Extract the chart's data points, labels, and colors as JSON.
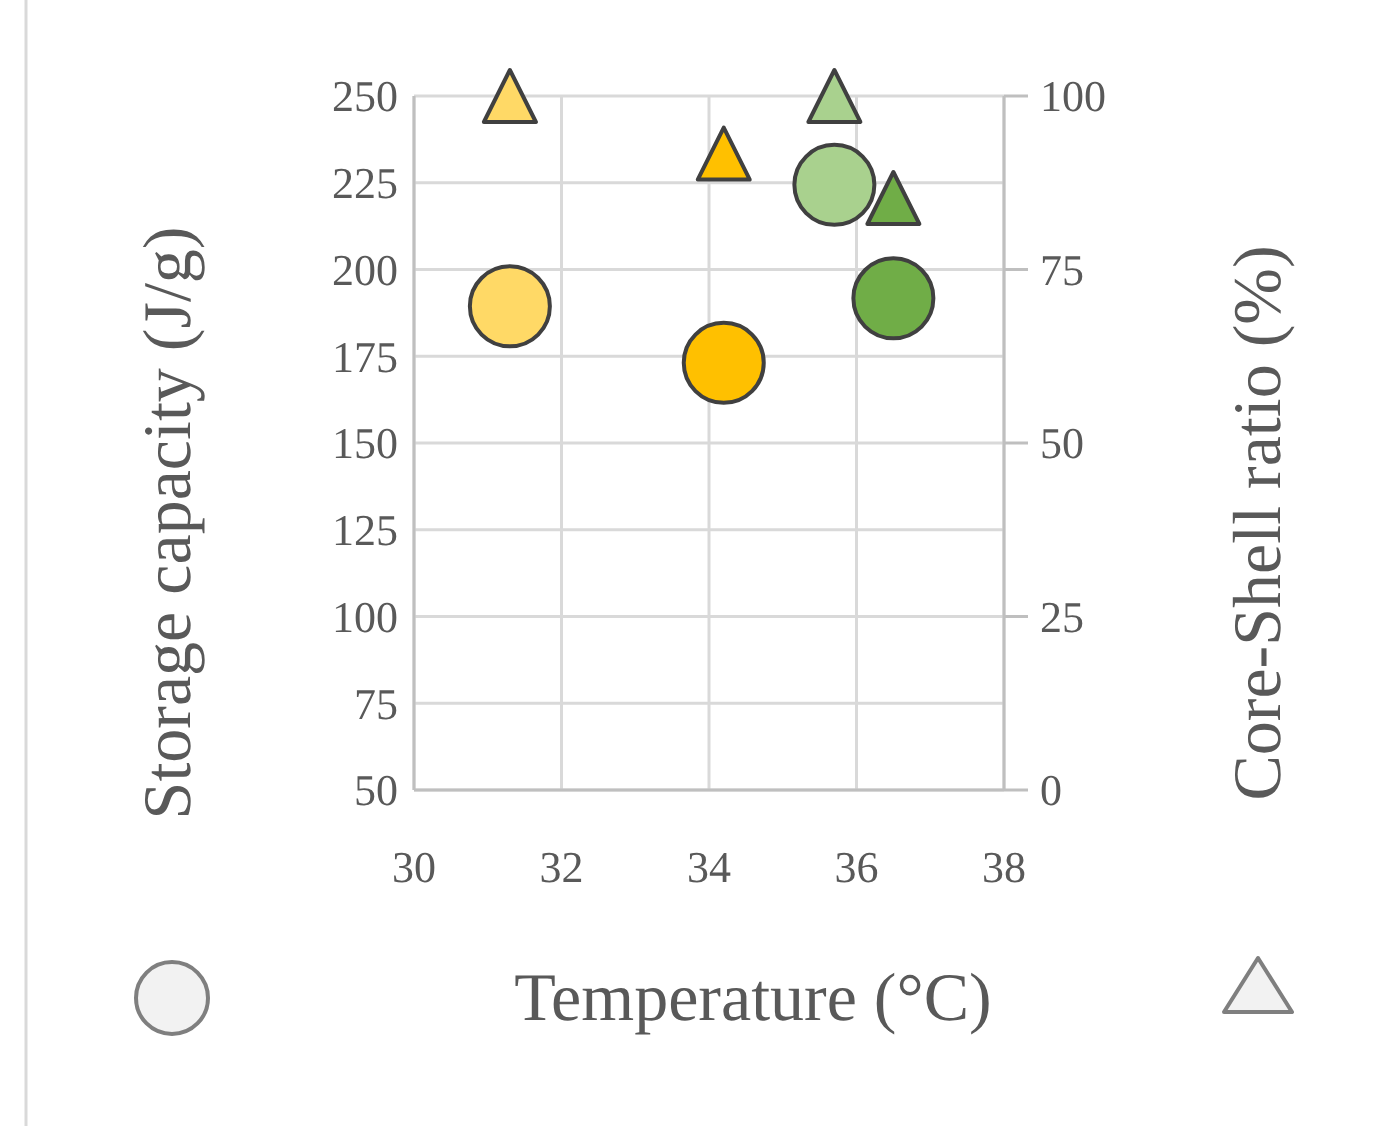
{
  "chart_data": {
    "type": "scatter",
    "xlabel": "Temperature (°C)",
    "ylabel": "Storage capacity (J/g)",
    "y2label": "Core-Shell ratio (%)",
    "x": [
      31.3,
      34.2,
      35.7,
      36.5
    ],
    "series": [
      {
        "marker": "circle",
        "colors": [
          "#ffd966",
          "#ffc000",
          "#a9d18e",
          "#70ad47"
        ],
        "values": [
          189.4,
          173.1,
          224.4,
          191.7
        ]
      },
      {
        "marker": "triangle",
        "axis": "y2",
        "colors": [
          "#ffd966",
          "#ffc000",
          "#a9d18e",
          "#70ad47"
        ],
        "values": [
          100,
          91.7,
          100,
          85.3
        ]
      }
    ],
    "xlim": [
      30,
      38
    ],
    "xticks": [
      30,
      32,
      34,
      36,
      38
    ],
    "ylim": [
      50,
      250
    ],
    "yticks": [
      50,
      75,
      100,
      125,
      150,
      175,
      200,
      225,
      250
    ],
    "y2lim": [
      0,
      100
    ],
    "y2ticks": [
      0,
      25,
      50,
      75,
      100
    ],
    "grid": true
  }
}
